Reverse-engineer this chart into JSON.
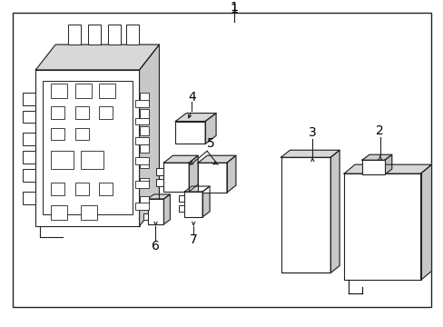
{
  "background_color": "#ffffff",
  "border_color": "#222222",
  "line_color": "#222222",
  "text_color": "#000000",
  "fig_width": 4.89,
  "fig_height": 3.6,
  "dpi": 100,
  "label_fontsize": 10
}
